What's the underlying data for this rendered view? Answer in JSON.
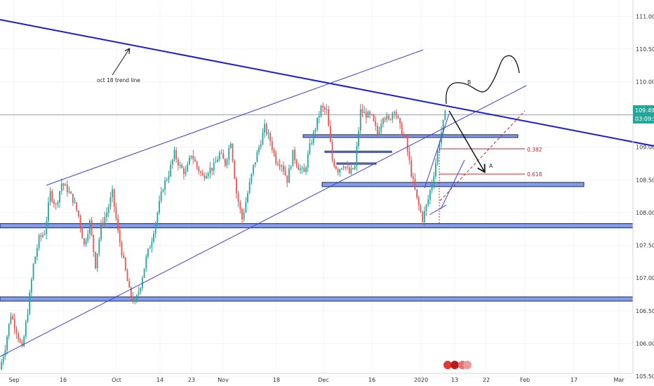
{
  "chart_data": {
    "type": "candlestick",
    "x_ticks": [
      "Sep",
      "16",
      "Oct",
      "14",
      "23",
      "Nov",
      "18",
      "Dec",
      "16",
      "2020",
      "13",
      "22",
      "Feb",
      "17",
      "Mar"
    ],
    "y_ticks": [
      "111.000",
      "110.500",
      "110.000",
      "109.500",
      "109.000",
      "108.500",
      "108.000",
      "107.500",
      "107.000",
      "106.500",
      "106.000",
      "105.500"
    ],
    "ylim": [
      105.35,
      111.25
    ],
    "current_price": "109.495",
    "countdown": "03:09:57",
    "annotations": {
      "trend_line_label": "oct 18 trend line",
      "wave_b_label": "B",
      "wave_a_label": "A",
      "fib_382": "0.382",
      "fib_618": "0.618"
    },
    "price_path": [
      105.6,
      105.95,
      106.45,
      106.2,
      105.9,
      106.5,
      107.2,
      107.6,
      107.7,
      108.3,
      108.1,
      108.45,
      108.35,
      108.2,
      107.95,
      107.5,
      107.85,
      107.2,
      107.8,
      108.0,
      108.3,
      107.7,
      107.25,
      106.8,
      106.6,
      106.9,
      107.3,
      107.6,
      108.0,
      108.4,
      108.6,
      108.9,
      108.7,
      108.6,
      108.9,
      108.7,
      108.55,
      108.65,
      108.7,
      108.9,
      108.75,
      109.1,
      108.3,
      107.9,
      108.3,
      108.7,
      109.0,
      109.3,
      109.1,
      108.8,
      108.75,
      108.5,
      108.9,
      108.7,
      108.6,
      109.0,
      109.3,
      109.6,
      109.55,
      108.8,
      108.65,
      108.75,
      108.6,
      108.7,
      109.55,
      109.5,
      109.45,
      109.2,
      109.5,
      109.4,
      109.6,
      109.3,
      109.1,
      108.6,
      108.2,
      107.9,
      108.2,
      108.6,
      109.1,
      109.5
    ],
    "colors": {
      "up": "#26a69a",
      "down": "#ef5350",
      "trend": "#1b1bd6",
      "channel": "#3f3fe0",
      "zone_fill": "#5b7fd6",
      "zone_stroke": "#1a237e",
      "price_line": "#5fbfb5",
      "price_box": "#26a69a",
      "fib": "#c62828"
    }
  }
}
